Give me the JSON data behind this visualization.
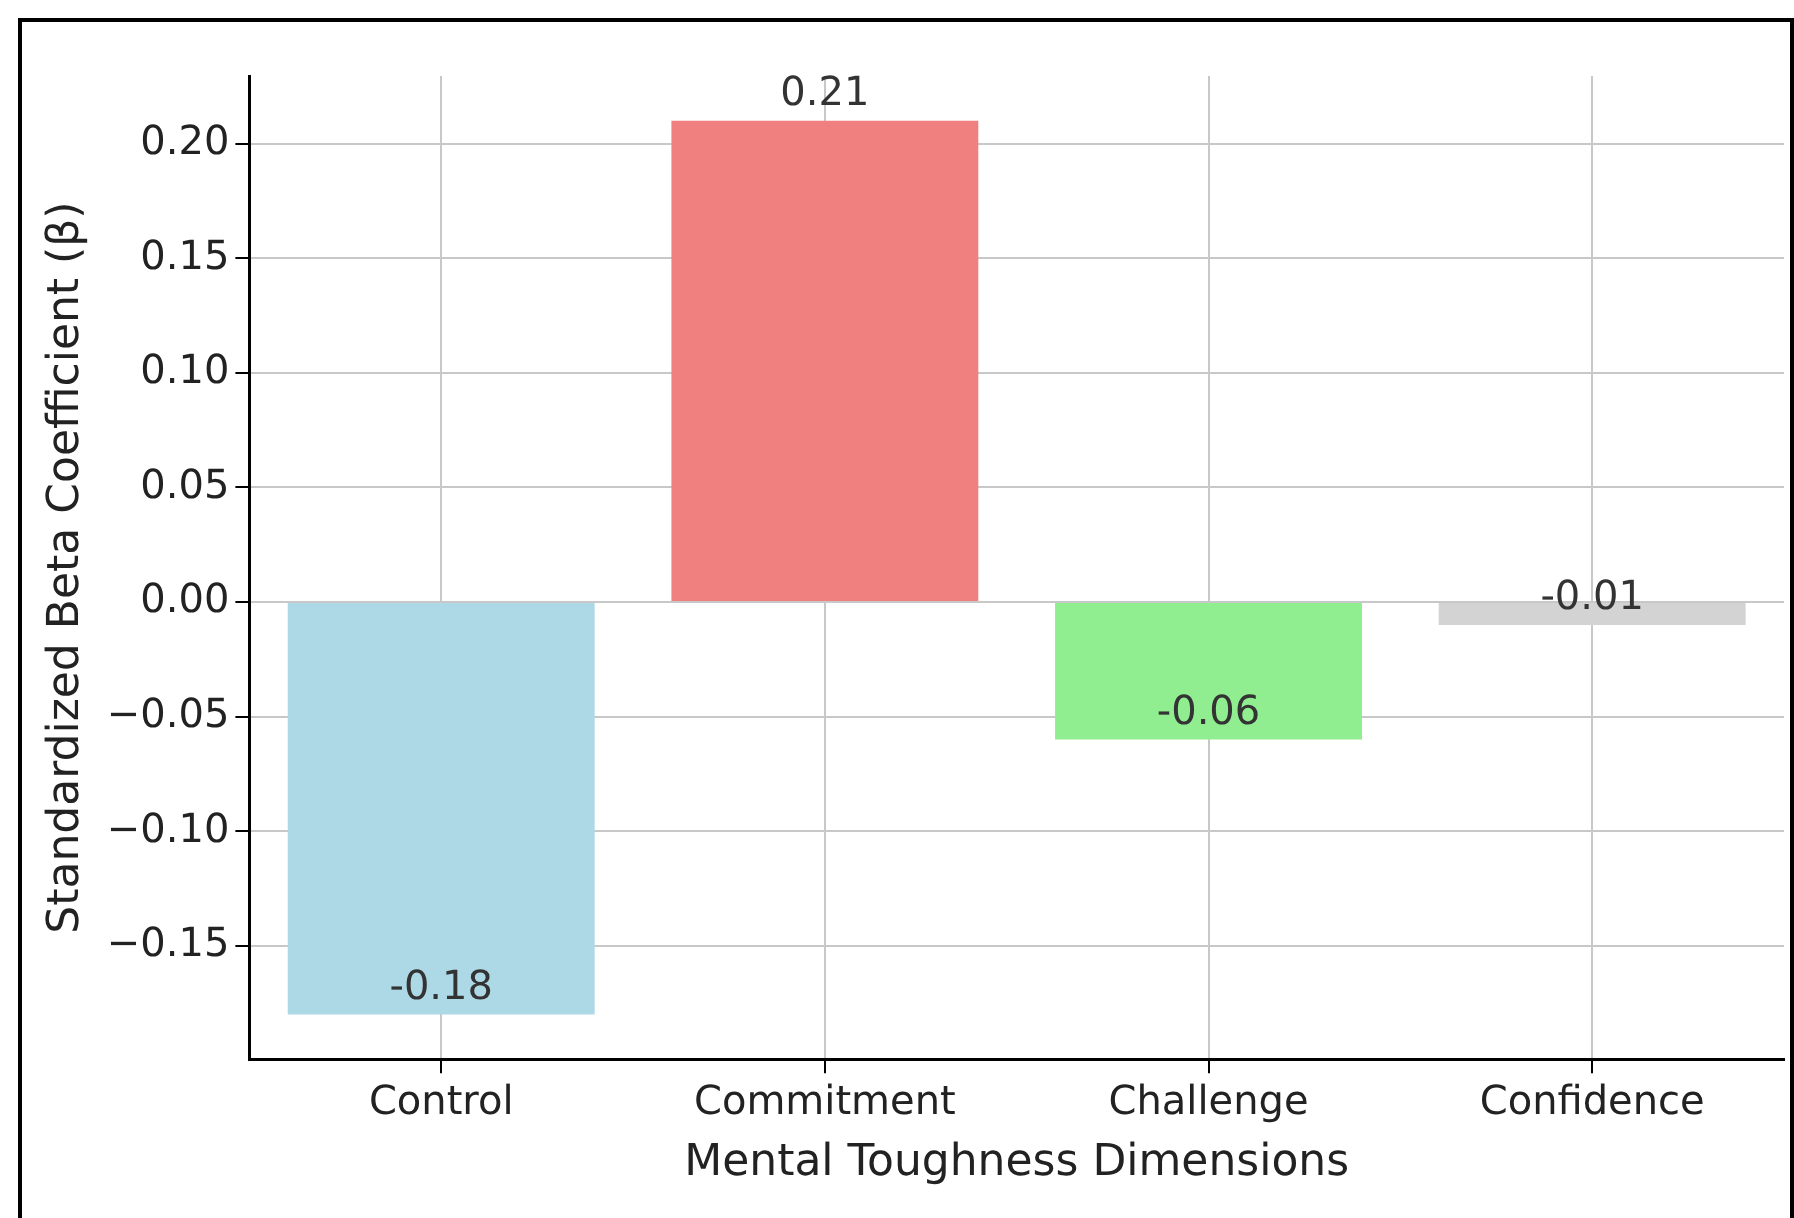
{
  "chart_data": {
    "type": "bar",
    "xlabel": "Mental Toughness Dimensions",
    "ylabel": "Standardized Beta Coefficient (β)",
    "categories": [
      "Control",
      "Commitment",
      "Challenge",
      "Confidence"
    ],
    "values": [
      -0.18,
      0.21,
      -0.06,
      -0.01
    ],
    "colors": [
      "#add8e6",
      "#f08080",
      "#90ee90",
      "#d3d3d3"
    ],
    "ylim": [
      -0.1995,
      0.2295
    ],
    "yticks": [
      {
        "value": -0.15,
        "label": "−0.15"
      },
      {
        "value": -0.1,
        "label": "−0.10"
      },
      {
        "value": -0.05,
        "label": "−0.05"
      },
      {
        "value": 0,
        "label": "0.00"
      },
      {
        "value": 0.05,
        "label": "0.05"
      },
      {
        "value": 0.1,
        "label": "0.10"
      },
      {
        "value": 0.15,
        "label": "0.15"
      },
      {
        "value": 0.2,
        "label": "0.20"
      }
    ],
    "grid": true,
    "data_labels": true,
    "legend": false
  }
}
